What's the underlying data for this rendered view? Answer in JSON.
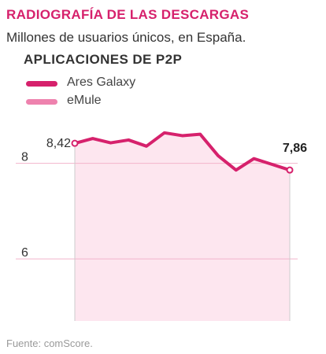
{
  "header": {
    "title": "RADIOGRAFÍA DE LAS DESCARGAS",
    "subtitle": "Millones de usuarios únicos, en España."
  },
  "footer": {
    "source": "Fuente: comScore."
  },
  "colors": {
    "accent": "#d6216c",
    "emule": "#ee82ae",
    "area_fill": "#fde6ef",
    "gridline": "#f2b3cb"
  },
  "chart_data": {
    "type": "line",
    "title": "APLICACIONES DE P2P",
    "xlabel": "",
    "ylabel": "",
    "ylim": [
      4.7,
      8.95
    ],
    "yticks": [
      6,
      8
    ],
    "grid": true,
    "legend_position": "top-left",
    "series": [
      {
        "name": "Ares Galaxy",
        "color": "#d6216c",
        "values": [
          8.42,
          8.52,
          8.43,
          8.49,
          8.36,
          8.64,
          8.58,
          8.61,
          8.16,
          7.86,
          8.1,
          7.98,
          7.86
        ],
        "first_label": "8,42",
        "last_label": "7,86"
      },
      {
        "name": "eMule",
        "color": "#ee82ae",
        "values": []
      }
    ]
  }
}
